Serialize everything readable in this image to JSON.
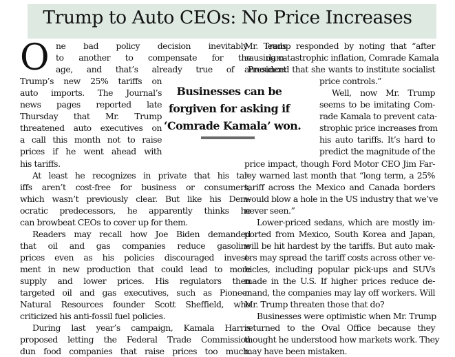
{
  "article": {
    "headline": "Trump to Auto CEOs: No Price Increases",
    "dropcap": "O",
    "pull_quote": [
      "Businesses can be",
      "forgiven for asking if",
      "‘Comrade Kamala’ won."
    ],
    "col1": [
      "ne bad policy decision inevitably leads",
      "to another to compensate for the dam-",
      "age, and that’s already true of President",
      "Trump’s new 25% tariffs on",
      "auto imports. The Journal’s",
      "news pages reported late",
      "Thursday that Mr. Trump",
      "threatened auto executives on",
      "a call this month not to raise",
      "prices if he went ahead with",
      "his tariffs.",
      "At least he recognizes in private that his tar-",
      "iffs aren’t cost-free for business or consumers,",
      "which wasn’t previously clear. But like his Dem-",
      "ocratic predecessors, he apparently thinks he",
      "can browbeat CEOs to cover up for them.",
      "Readers may recall how Joe Biden demanded",
      "that oil and gas companies reduce gasoline",
      "prices even as his policies discouraged invest-",
      "ment in new production that could lead to more",
      "supply and lower prices. His regulators then",
      "targeted oil and gas executives, such as Pioneer",
      "Natural Resources founder Scott Sheffield, who",
      "criticized his anti-fossil fuel policies.",
      "During last year’s campaign, Kamala Harris",
      "proposed letting the Federal Trade Commission",
      "dun food companies that raise prices too much."
    ],
    "col2": [
      "Mr. Trump responded by noting that “after",
      "causing catastrophic inflation, Comrade Kamala",
      "announced that she wants to institute socialist",
      "price controls.”",
      "Well, now Mr. Trump",
      "seems to be imitating Com-",
      "rade Kamala to prevent cata-",
      "strophic price increases from",
      "his auto tariffs. It’s hard to",
      "predict the magnitude of the",
      "price impact, though Ford Motor CEO Jim Far-",
      "ley warned last month that “long term, a 25%",
      "tariff across the Mexico and Canada borders",
      "would blow a hole in the US industry that we’ve",
      "never seen.”",
      "Lower-priced sedans, which are mostly im-",
      "ported from Mexico, South Korea and Japan,",
      "will be hit hardest by the tariffs. But auto mak-",
      "ers may spread the tariff costs across other ve-",
      "hicles, including popular pick-ups and SUVs",
      "made in the U.S. If higher prices reduce de-",
      "mand, the companies may lay off workers. Will",
      "Mr. Trump threaten those that do?",
      "Businesses were optimistic when Mr. Trump",
      "returned to the Oval Office because they",
      "thought he understood how markets work. They",
      "may have been mistaken."
    ]
  }
}
